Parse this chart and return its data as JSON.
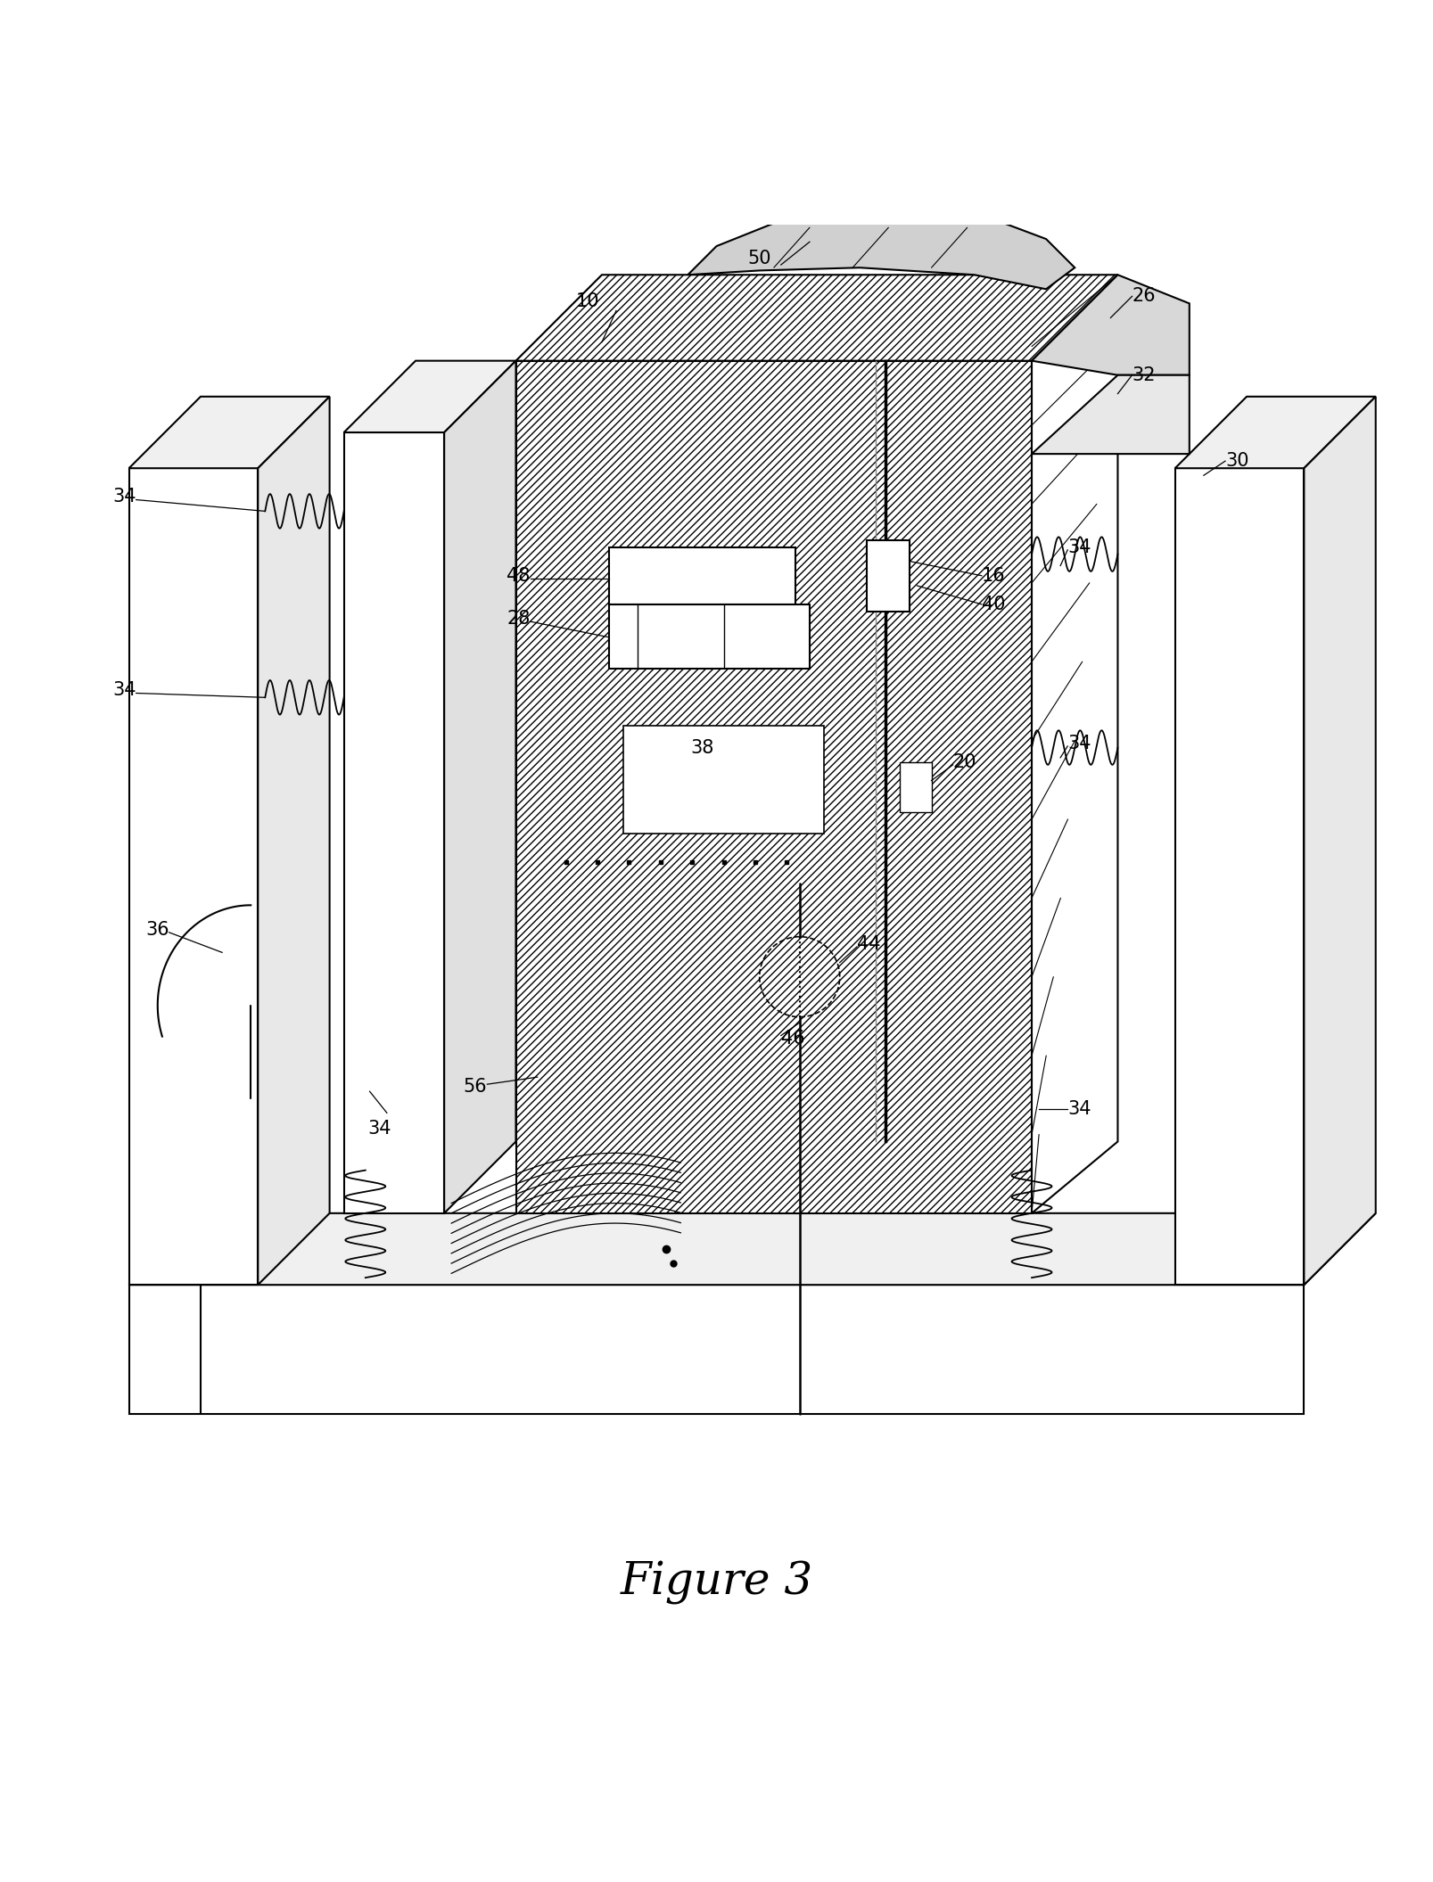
{
  "title": "Figure 3",
  "title_fontsize": 36,
  "title_font": "serif",
  "background_color": "#ffffff",
  "line_color": "#000000",
  "fig_width": 16.07,
  "fig_height": 21.11
}
